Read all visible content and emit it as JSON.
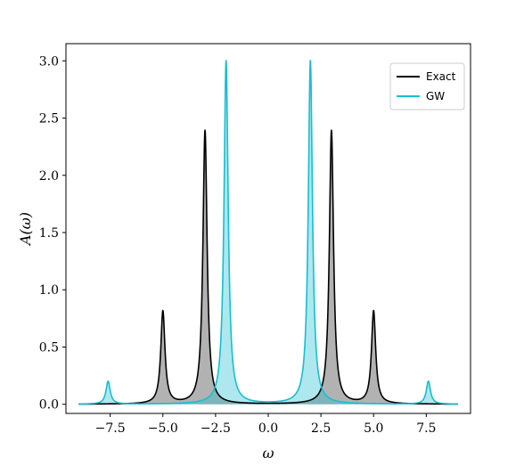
{
  "chart_data": {
    "type": "line",
    "title": "",
    "xlabel": "ω",
    "ylabel": "A(ω)",
    "xlim": [
      -9.6,
      9.6
    ],
    "ylim": [
      -0.08,
      3.15
    ],
    "xticks": [
      -7.5,
      -5.0,
      -2.5,
      0.0,
      2.5,
      5.0,
      7.5
    ],
    "xtick_labels": [
      "−7.5",
      "−5.0",
      "−2.5",
      "0.0",
      "2.5",
      "5.0",
      "7.5"
    ],
    "yticks": [
      0.0,
      0.5,
      1.0,
      1.5,
      2.0,
      2.5,
      3.0
    ],
    "ytick_labels": [
      "0.0",
      "0.5",
      "1.0",
      "1.5",
      "2.0",
      "2.5",
      "3.0"
    ],
    "x_range": [
      -9.0,
      9.0
    ],
    "grid": false,
    "legend_position": "top-right",
    "series": [
      {
        "name": "Exact",
        "color": "#000000",
        "fill": "#7f7f7f",
        "peaks": [
          {
            "x": -5.0,
            "y": 0.81
          },
          {
            "x": -3.0,
            "y": 2.39
          },
          {
            "x": 3.0,
            "y": 2.39
          },
          {
            "x": 5.0,
            "y": 0.81
          }
        ]
      },
      {
        "name": "GW",
        "color": "#17becf",
        "fill": "#17becf",
        "peaks": [
          {
            "x": -7.6,
            "y": 0.2
          },
          {
            "x": -2.0,
            "y": 3.0
          },
          {
            "x": 2.0,
            "y": 3.0
          },
          {
            "x": 7.6,
            "y": 0.2
          }
        ]
      }
    ]
  }
}
